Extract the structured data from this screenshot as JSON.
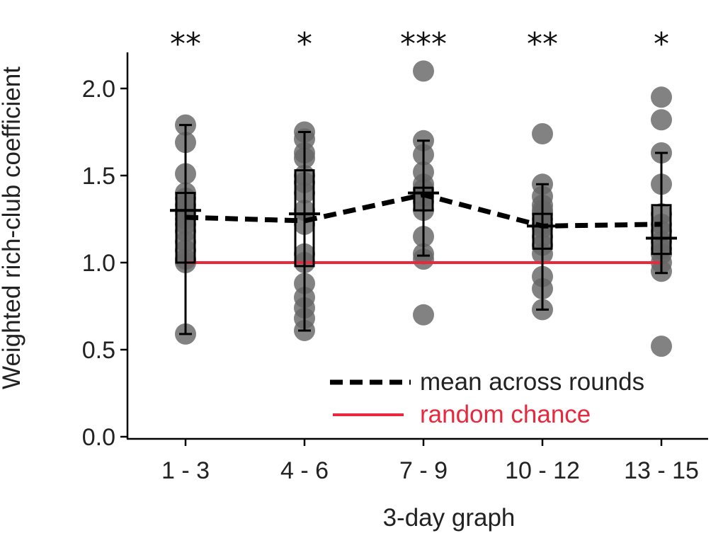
{
  "chart_data": {
    "type": "scatter",
    "title": "",
    "xlabel": "3-day graph",
    "ylabel": "Weighted rich-club coefficient",
    "categories": [
      "1 - 3",
      "4 - 6",
      "7 - 9",
      "10 - 12",
      "13 - 15"
    ],
    "yticks": [
      "0.0",
      "0.5",
      "1.0",
      "1.5",
      "2.0"
    ],
    "ylim": [
      0,
      2.2
    ],
    "grid": false,
    "significance": [
      "**",
      "*",
      "***",
      "**",
      "*"
    ],
    "points": [
      [
        1.79,
        1.69,
        1.51,
        1.4,
        1.37,
        1.33,
        1.3,
        1.28,
        1.25,
        1.22,
        1.18,
        1.12,
        1.07,
        1.02,
        1.0,
        0.59
      ],
      [
        1.75,
        1.71,
        1.63,
        1.6,
        1.5,
        1.46,
        1.4,
        1.3,
        1.22,
        1.05,
        1.0,
        0.88,
        0.8,
        0.74,
        0.68,
        0.61
      ],
      [
        2.1,
        1.7,
        1.62,
        1.52,
        1.45,
        1.42,
        1.38,
        1.35,
        1.3,
        1.15,
        1.05,
        1.02,
        0.7
      ],
      [
        1.74,
        1.45,
        1.38,
        1.33,
        1.3,
        1.28,
        1.25,
        1.22,
        1.2,
        1.15,
        1.1,
        1.05,
        0.92,
        0.85,
        0.73
      ],
      [
        1.95,
        1.82,
        1.63,
        1.45,
        1.28,
        1.22,
        1.18,
        1.12,
        1.08,
        1.05,
        1.0,
        0.95,
        0.52
      ]
    ],
    "boxes": [
      {
        "q1": 1.0,
        "q3": 1.4,
        "median": 1.3
      },
      {
        "q1": 0.98,
        "q3": 1.53,
        "median": 1.28
      },
      {
        "q1": 1.3,
        "q3": 1.43,
        "median": 1.4
      },
      {
        "q1": 1.08,
        "q3": 1.28,
        "median": 1.21
      },
      {
        "q1": 1.05,
        "q3": 1.33,
        "median": 1.14
      }
    ],
    "error_bars": [
      {
        "low": 0.59,
        "high": 1.79
      },
      {
        "low": 0.61,
        "high": 1.75
      },
      {
        "low": 1.04,
        "high": 1.7
      },
      {
        "low": 0.73,
        "high": 1.45
      },
      {
        "low": 0.94,
        "high": 1.63
      }
    ],
    "series": [
      {
        "name": "mean across rounds",
        "values": [
          1.26,
          1.24,
          1.39,
          1.21,
          1.22
        ],
        "style": "dashed",
        "color": "#000000"
      },
      {
        "name": "random chance",
        "values": [
          1.0,
          1.0,
          1.0,
          1.0,
          1.0
        ],
        "style": "solid",
        "color": "#e8283c"
      }
    ],
    "point_color": "#666666",
    "legend_position": "bottom-right"
  }
}
